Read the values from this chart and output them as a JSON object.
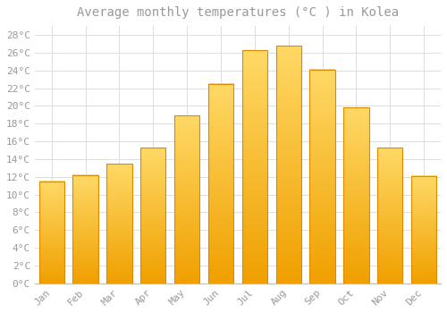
{
  "title": "Average monthly temperatures (°C ) in Kolea",
  "months": [
    "Jan",
    "Feb",
    "Mar",
    "Apr",
    "May",
    "Jun",
    "Jul",
    "Aug",
    "Sep",
    "Oct",
    "Nov",
    "Dec"
  ],
  "temperatures": [
    11.5,
    12.2,
    13.5,
    15.3,
    18.9,
    22.5,
    26.3,
    26.8,
    24.1,
    19.8,
    15.3,
    12.1
  ],
  "bar_color_center": "#FFB800",
  "bar_color_light": "#FFD966",
  "bar_edge_color": "#E08800",
  "background_color": "#FFFFFF",
  "plot_bg_color": "#FFFFFF",
  "grid_color": "#DDDDDD",
  "text_color": "#999999",
  "title_color": "#999999",
  "ylim": [
    0,
    29
  ],
  "yticks": [
    0,
    2,
    4,
    6,
    8,
    10,
    12,
    14,
    16,
    18,
    20,
    22,
    24,
    26,
    28
  ],
  "ytick_labels": [
    "0°C",
    "2°C",
    "4°C",
    "6°C",
    "8°C",
    "10°C",
    "12°C",
    "14°C",
    "16°C",
    "18°C",
    "20°C",
    "22°C",
    "24°C",
    "26°C",
    "28°C"
  ],
  "font_family": "monospace",
  "title_fontsize": 10,
  "tick_fontsize": 8,
  "bar_width": 0.75
}
